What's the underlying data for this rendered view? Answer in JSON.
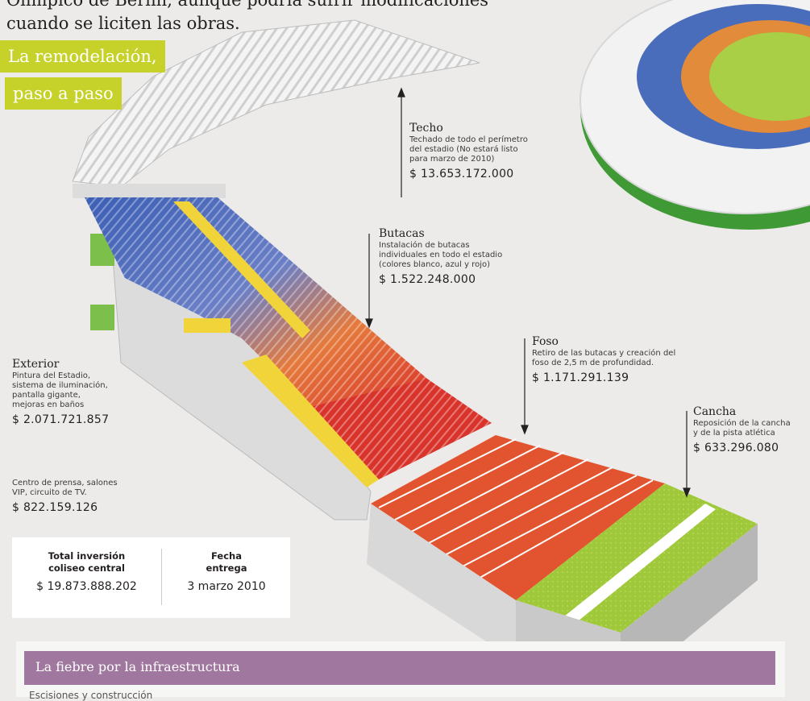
{
  "intro": {
    "line1": "Olímpico de Berlín, aunque podría sufrir modificaciones",
    "line2": "cuando se liciten las obras."
  },
  "headline": {
    "line1": "La remodelación,",
    "line2": "paso a paso"
  },
  "accent_color": "#c6d22a",
  "section_color": "#a0779e",
  "labels": {
    "techo": {
      "title": "Techo",
      "desc": [
        "Techado de todo el perímetro",
        "del estadio (No estará listo",
        "para marzo de 2010)"
      ],
      "amount": "$ 13.653.172.000"
    },
    "butacas": {
      "title": "Butacas",
      "desc": [
        "Instalación de butacas",
        "individuales en todo el estadio",
        "(colores blanco, azul y rojo)"
      ],
      "amount": "$ 1.522.248.000"
    },
    "foso": {
      "title": "Foso",
      "desc": [
        "Retiro de las butacas y creación del",
        "foso de 2,5 m de profundidad."
      ],
      "amount": "$ 1.171.291.139"
    },
    "cancha": {
      "title": "Cancha",
      "desc": [
        "Reposición de la cancha",
        "y de la pista atlética"
      ],
      "amount": "$ 633.296.080"
    },
    "exterior": {
      "title": "Exterior",
      "desc": [
        "Pintura del Estadio,",
        "sistema de iluminación,",
        "pantalla gigante,",
        "mejoras en baños"
      ],
      "amount": "$ 2.071.721.857"
    },
    "prensa": {
      "desc": [
        "Centro de prensa, salones",
        "VIP, circuito de TV."
      ],
      "amount": "$ 822.159.126"
    }
  },
  "totals": {
    "investment_label": [
      "Total inversión",
      "coliseo central"
    ],
    "investment_value": "$ 19.873.888.202",
    "delivery_label": [
      "Fecha",
      "entrega"
    ],
    "delivery_value": "3 marzo 2010"
  },
  "section": {
    "title": "La fiebre por la infraestructura",
    "subtitle": "Escisiones y construcción"
  }
}
